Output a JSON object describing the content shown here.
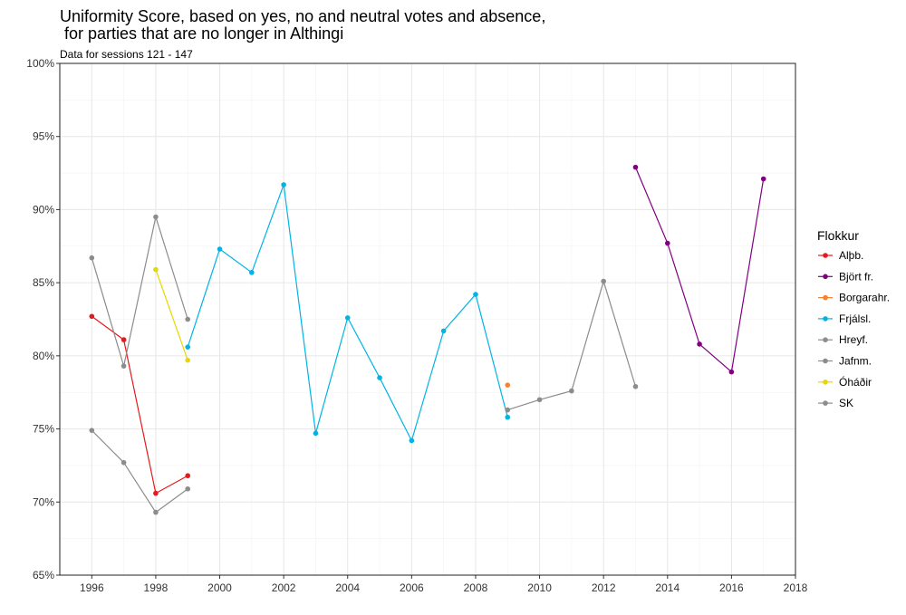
{
  "title_line1": "Uniformity Score, based on yes, no and neutral votes and absence,",
  "title_line2": " for parties that are no longer in Althingi",
  "subtitle": "Data for sessions 121 - 147",
  "legend_title": "Flokkur",
  "chart_data": {
    "type": "line",
    "title": "Uniformity Score, based on yes, no and neutral votes and absence,\n for parties that are no longer in Althingi",
    "subtitle": "Data for sessions 121 - 147",
    "xlabel": "",
    "ylabel": "",
    "xlim": [
      1995,
      2018
    ],
    "ylim": [
      65,
      100
    ],
    "x_ticks": [
      1996,
      1998,
      2000,
      2002,
      2004,
      2006,
      2008,
      2010,
      2012,
      2014,
      2016,
      2018
    ],
    "y_ticks": [
      65,
      70,
      75,
      80,
      85,
      90,
      95,
      100
    ],
    "y_tick_labels": [
      "65%",
      "70%",
      "75%",
      "80%",
      "85%",
      "90%",
      "95%",
      "100%"
    ],
    "grid": true,
    "legend_position": "right",
    "series": [
      {
        "name": "Alþb.",
        "color": "#e41a1c",
        "points": [
          [
            1996,
            82.7
          ],
          [
            1997,
            81.1
          ],
          [
            1998,
            70.6
          ],
          [
            1999,
            71.8
          ]
        ]
      },
      {
        "name": "Björt fr.",
        "color": "#800080",
        "points": [
          [
            2013,
            92.9
          ],
          [
            2014,
            87.7
          ],
          [
            2015,
            80.8
          ],
          [
            2016,
            78.9
          ],
          [
            2017,
            92.1
          ]
        ]
      },
      {
        "name": "Borgarahr.",
        "color": "#f58231",
        "points": [
          [
            2009,
            78.0
          ]
        ]
      },
      {
        "name": "Frjálsl.",
        "color": "#00b4e6",
        "points": [
          [
            1999,
            80.6
          ],
          [
            2000,
            87.3
          ],
          [
            2001,
            85.7
          ],
          [
            2002,
            91.7
          ],
          [
            2003,
            74.7
          ],
          [
            2004,
            82.6
          ],
          [
            2005,
            78.5
          ],
          [
            2006,
            74.2
          ],
          [
            2007,
            81.7
          ],
          [
            2008,
            84.2
          ],
          [
            2009,
            75.8
          ]
        ]
      },
      {
        "name": "Hreyf.",
        "color": "#8c8c8c",
        "points": [
          [
            2009,
            76.3
          ],
          [
            2010,
            77.0
          ],
          [
            2011,
            77.6
          ],
          [
            2012,
            85.1
          ],
          [
            2013,
            77.9
          ]
        ]
      },
      {
        "name": "Jafnm.",
        "color": "#8c8c8c",
        "points": [
          [
            1996,
            86.7
          ],
          [
            1997,
            79.3
          ],
          [
            1998,
            89.5
          ],
          [
            1999,
            82.5
          ]
        ]
      },
      {
        "name": "Óháðir",
        "color": "#e6d800",
        "points": [
          [
            1998,
            85.9
          ],
          [
            1999,
            79.7
          ]
        ]
      },
      {
        "name": "SK",
        "color": "#8c8c8c",
        "points": [
          [
            1996,
            74.9
          ],
          [
            1997,
            72.7
          ],
          [
            1998,
            69.3
          ],
          [
            1999,
            70.9
          ]
        ]
      }
    ]
  }
}
